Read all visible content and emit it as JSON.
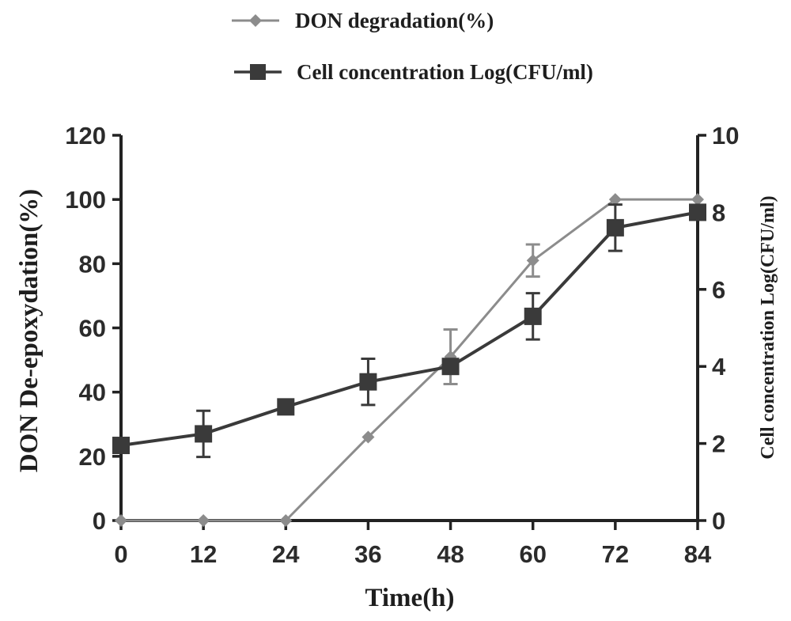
{
  "chart_data": {
    "type": "line",
    "title": "",
    "xlabel": "Time(h)",
    "ylabel_left": "DON De-epoxydation(%)",
    "ylabel_right": "Cell concentration Log(CFU/ml)",
    "x": [
      0,
      12,
      24,
      36,
      48,
      60,
      72,
      84
    ],
    "xticks": [
      0,
      12,
      24,
      36,
      48,
      60,
      72,
      84
    ],
    "xlim": [
      0,
      84
    ],
    "ylim_left": [
      0,
      120
    ],
    "yticks_left": [
      0,
      20,
      40,
      60,
      80,
      100,
      120
    ],
    "ylim_right": [
      0,
      10
    ],
    "yticks_right": [
      0,
      2,
      4,
      6,
      8,
      10
    ],
    "legend_position": "top-center",
    "grid": false,
    "series": [
      {
        "name": "DON degradation(%)",
        "axis": "left",
        "marker": "diamond",
        "color": "#8c8c8c",
        "values": [
          0,
          0,
          0,
          26,
          51,
          81,
          100,
          100
        ],
        "error": [
          0,
          0,
          0,
          0,
          8.5,
          5,
          0,
          0
        ]
      },
      {
        "name": "Cell concentration Log(CFU/ml)",
        "axis": "right",
        "marker": "square",
        "color": "#3a3a3a",
        "values": [
          1.95,
          2.25,
          2.95,
          3.6,
          4.0,
          5.3,
          7.6,
          8.0
        ],
        "error": [
          0,
          0.6,
          0,
          0.6,
          0,
          0.6,
          0.6,
          0
        ]
      }
    ]
  }
}
